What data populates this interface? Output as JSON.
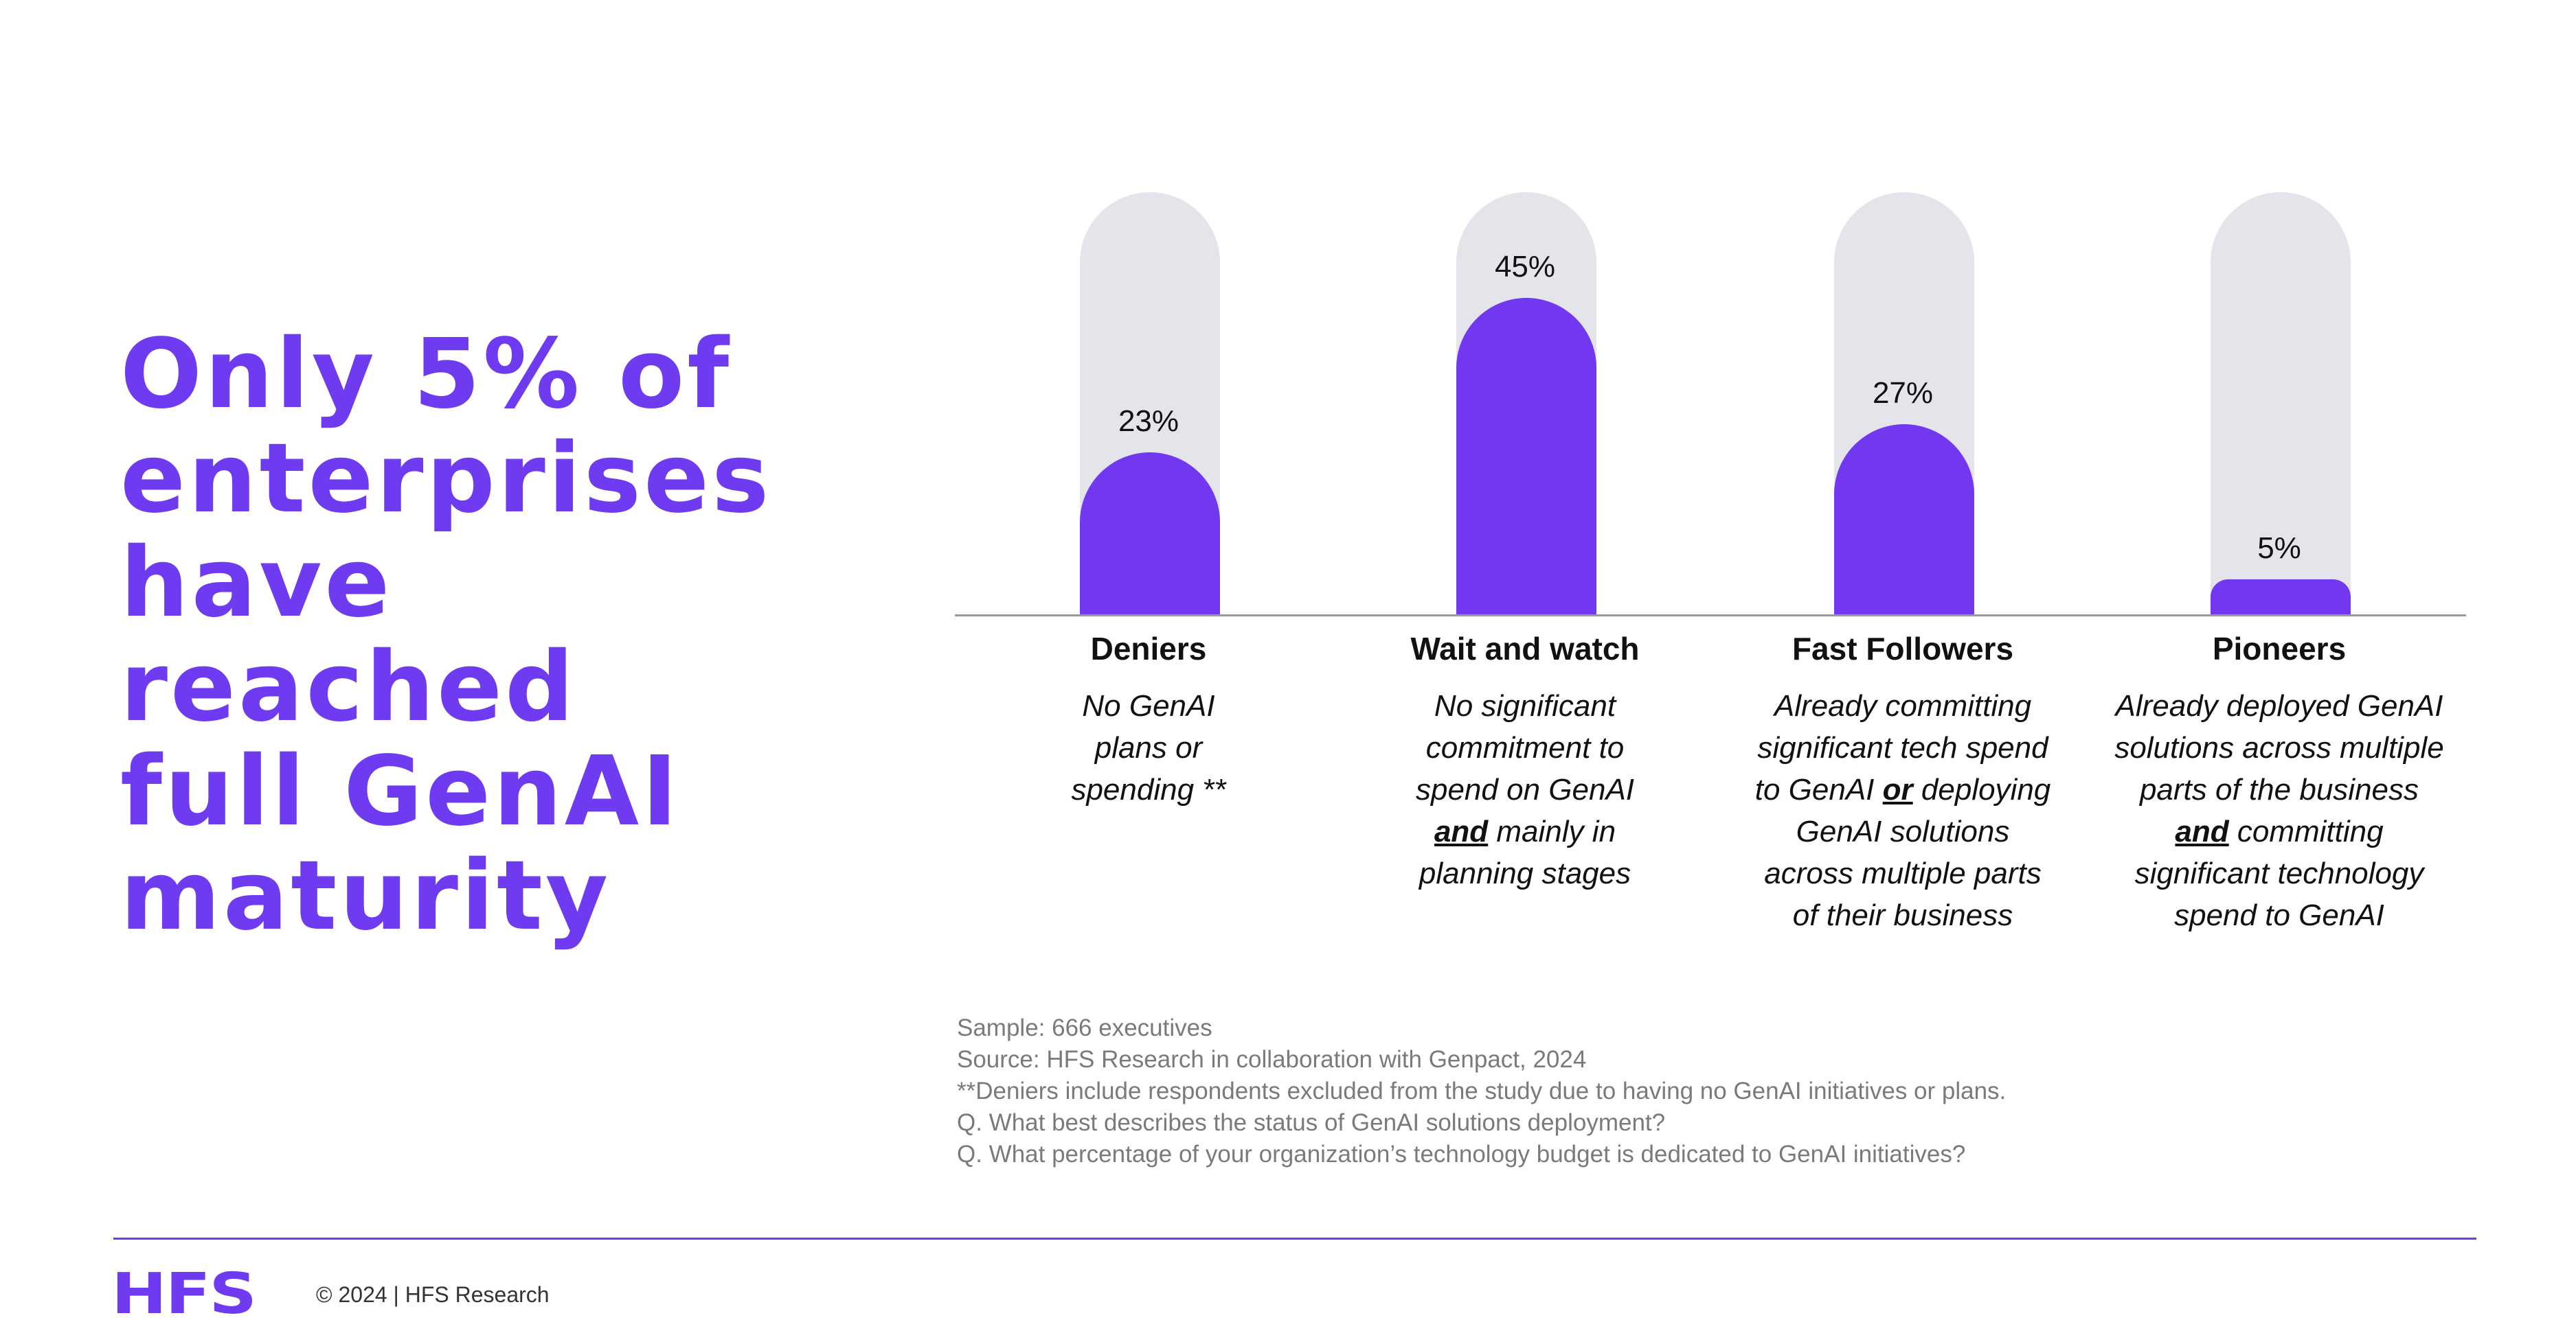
{
  "headline": {
    "lines": [
      "Only 5% of",
      "enterprises",
      "have",
      "reached",
      "full GenAI",
      "maturity"
    ]
  },
  "chart_data": {
    "type": "bar",
    "categories": [
      "Deniers",
      "Wait and watch",
      "Fast Followers",
      "Pioneers"
    ],
    "values": [
      23,
      45,
      27,
      5
    ],
    "value_labels": [
      "23%",
      "45%",
      "27%",
      "5%"
    ],
    "ylim": [
      0,
      60
    ],
    "descriptions": [
      [
        "No GenAI",
        "plans or",
        "spending **"
      ],
      [
        "No significant",
        "commitment to",
        "spend on GenAI",
        "and mainly in",
        "planning stages"
      ],
      [
        "Already committing",
        "significant tech spend",
        "to GenAI or deploying",
        "GenAI solutions",
        "across multiple parts",
        "of their business"
      ],
      [
        "Already deployed GenAI",
        "solutions across multiple",
        "parts of the business",
        "and committing",
        "significant technology",
        "spend to GenAI"
      ]
    ],
    "emphasis_words": [
      "",
      "and",
      "or",
      "and"
    ],
    "colors": {
      "fill": "#7138F0",
      "track": "#E3E5EA"
    }
  },
  "notes": [
    "Sample: 666 executives",
    "Source: HFS Research in collaboration with Genpact, 2024",
    "**Deniers include respondents excluded from the study due to having no GenAI initiatives or plans.",
    "Q. What best describes the status of GenAI solutions deployment?",
    "Q. What percentage of your organization’s technology budget is dedicated to GenAI initiatives?"
  ],
  "footer": {
    "logo": "HFS",
    "copyright": "© 2024 | HFS Research"
  },
  "colors": {
    "accent": "#6E3BF0"
  }
}
